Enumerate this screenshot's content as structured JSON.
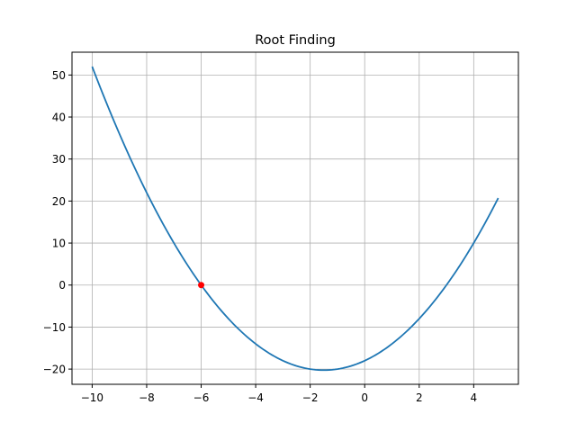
{
  "chart_data": {
    "type": "line",
    "title": "Root Finding",
    "xlabel": "",
    "ylabel": "",
    "xlim": [
      -10.74,
      5.64
    ],
    "ylim": [
      -23.62,
      55.43
    ],
    "grid": true,
    "x_ticks": [
      -10,
      -8,
      -6,
      -4,
      -2,
      0,
      2,
      4
    ],
    "x_tick_labels": [
      "−10",
      "−8",
      "−6",
      "−4",
      "−2",
      "0",
      "2",
      "4"
    ],
    "y_ticks": [
      -20,
      -10,
      0,
      10,
      20,
      30,
      40,
      50
    ],
    "y_tick_labels": [
      "−20",
      "−10",
      "0",
      "10",
      "20",
      "30",
      "40",
      "50"
    ],
    "series": [
      {
        "color": "#1f77b4",
        "function": "x^2 + 3x - 18",
        "x_range": [
          -10,
          4.9
        ],
        "x_step": 0.1
      }
    ],
    "points": [
      {
        "x": -6,
        "y": 0,
        "color": "#ff0000"
      }
    ]
  }
}
